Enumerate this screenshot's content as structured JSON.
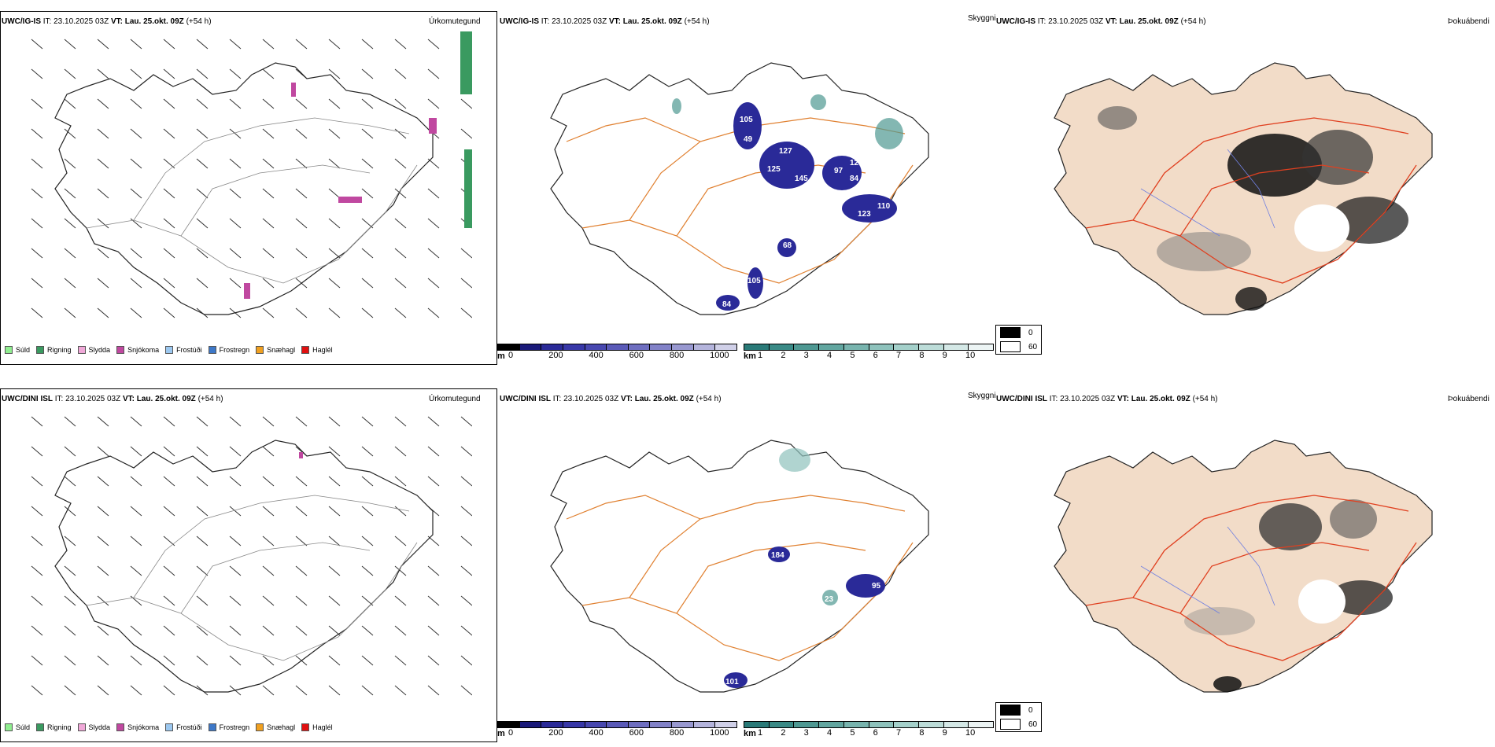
{
  "rows": [
    {
      "model": "UWC/IG-IS",
      "it_label": "IT:",
      "it_value": "23.10.2025 03Z",
      "vt_label": "VT:",
      "vt_value": "Lau. 25.okt. 09Z",
      "lead": "(+54 h)"
    },
    {
      "model": "UWC/DINI ISL",
      "it_label": "IT:",
      "it_value": "23.10.2025 03Z",
      "vt_label": "VT:",
      "vt_value": "Lau. 25.okt. 09Z",
      "lead": "(+54 h)"
    }
  ],
  "panels": {
    "precip_type": "Úrkomutegund",
    "visibility": "Skyggni",
    "fog_index": "Þokuábendi"
  },
  "precip_legend": [
    {
      "label": "Súld",
      "color": "#90ee90"
    },
    {
      "label": "Rigning",
      "color": "#3a9a60"
    },
    {
      "label": "Slydda",
      "color": "#f0a8d8"
    },
    {
      "label": "Snjókoma",
      "color": "#c048a0"
    },
    {
      "label": "Frostúði",
      "color": "#9cc8f0"
    },
    {
      "label": "Frostregn",
      "color": "#3d78c8"
    },
    {
      "label": "Snæhagl",
      "color": "#f0a020"
    },
    {
      "label": "Haglél",
      "color": "#e01010"
    }
  ],
  "cbar_m": {
    "unit": "m",
    "ticks": [
      "0",
      "200",
      "400",
      "600",
      "800",
      "1000"
    ],
    "colors": [
      "#000000",
      "#1a1a7a",
      "#2a2a98",
      "#3838a8",
      "#4848b0",
      "#5a5ab8",
      "#6e6ec0",
      "#8282c8",
      "#9898d0",
      "#b4b4dc",
      "#d0d0e8"
    ]
  },
  "cbar_km": {
    "unit": "km",
    "ticks": [
      "1",
      "2",
      "3",
      "4",
      "5",
      "6",
      "7",
      "8",
      "9",
      "10"
    ],
    "colors": [
      "#2a7a78",
      "#3a8a86",
      "#4e9892",
      "#62a6a0",
      "#78b4ae",
      "#8ec2bc",
      "#a4d0ca",
      "#bcdcd8",
      "#d4e8e6",
      "#ecf4f4"
    ]
  },
  "fog_legend": [
    {
      "label": "0",
      "color": "#000000"
    },
    {
      "label": "60",
      "color": "#ffffff"
    }
  ],
  "vis_labels_row1": [
    "105",
    "49",
    "127",
    "125",
    "145",
    "97",
    "12",
    "84",
    "110",
    "123",
    "68",
    "105",
    "84"
  ],
  "vis_labels_row2": [
    "184",
    "95",
    "23",
    "101"
  ]
}
